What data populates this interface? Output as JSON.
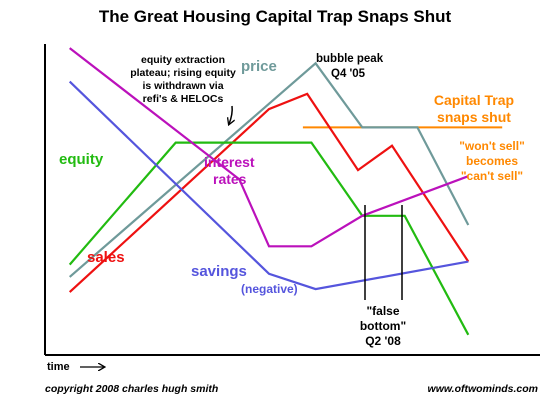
{
  "chart_data": {
    "type": "line",
    "title": "The Great Housing Capital Trap Snaps Shut",
    "xlabel": "time",
    "ylabel": "",
    "grid": false,
    "legend": "none",
    "x_range": [
      0,
      100
    ],
    "y_range": [
      0,
      100
    ],
    "series": [
      {
        "name": "price",
        "color": "#6f9a9a",
        "x": [
          3,
          61,
          72,
          85,
          97
        ],
        "y": [
          23,
          93,
          72,
          72,
          40
        ]
      },
      {
        "name": "sales",
        "color": "#ee1111",
        "x": [
          3,
          50,
          59,
          71,
          79,
          97
        ],
        "y": [
          18,
          78,
          83,
          58,
          66,
          28
        ]
      },
      {
        "name": "equity",
        "color": "#22bb11",
        "x": [
          3,
          28,
          60,
          72,
          82,
          97
        ],
        "y": [
          27,
          67,
          67,
          43,
          43,
          4
        ]
      },
      {
        "name": "interest rates",
        "color": "#bb11bb",
        "x": [
          3,
          43,
          50,
          60,
          72,
          97
        ],
        "y": [
          98,
          55,
          33,
          33,
          43,
          56
        ]
      },
      {
        "name": "savings",
        "color": "#5555dd",
        "x": [
          3,
          50,
          61,
          97
        ],
        "y": [
          87,
          24,
          19,
          28
        ]
      }
    ],
    "reference_line": {
      "label": "Capital Trap snaps shut",
      "color": "#ff8800",
      "x": [
        58,
        105
      ],
      "y": [
        72,
        72
      ]
    },
    "annotations": {
      "bubble_peak": [
        "bubble peak",
        "Q4 '05"
      ],
      "equity_plateau": [
        "equity extraction",
        "plateau; rising equity",
        "is withdrawn via",
        "refi's & HELOCs"
      ],
      "series_labels": {
        "price": "price",
        "equity": "equity",
        "sales": "sales",
        "interest_rates": [
          "interest",
          "rates"
        ],
        "savings": "savings",
        "savings_note": "(negative)"
      },
      "capital_trap": [
        "Capital Trap",
        "snaps shut"
      ],
      "wont_sell": [
        "\"won't sell\"",
        "becomes",
        "\"can't sell\""
      ],
      "false_bottom": [
        "\"false",
        "bottom\"",
        "Q2 '08"
      ]
    },
    "footer": {
      "copyright": "copyright 2008 charles hugh smith",
      "site": "www.oftwominds.com"
    }
  }
}
